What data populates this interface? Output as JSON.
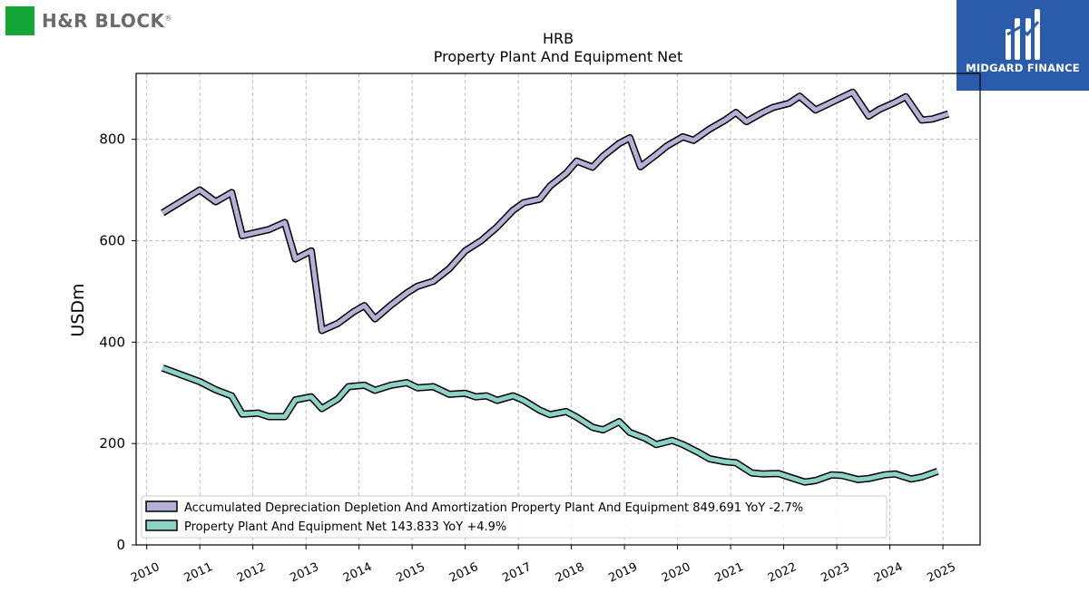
{
  "brand": {
    "left_logo": "H&R BLOCK",
    "left_logo_mark": "®",
    "right_logo": "MIDGARD FINANCE",
    "left_color": "#14a637",
    "right_color": "#2b5bab"
  },
  "chart_data": {
    "type": "line",
    "title": "HRB",
    "subtitle": "Property Plant And Equipment Net",
    "xlabel": "",
    "ylabel": "USDm",
    "xlim": [
      2009.8,
      2025.7
    ],
    "ylim": [
      0,
      930
    ],
    "yticks": [
      0,
      200,
      400,
      600,
      800
    ],
    "xticks": [
      "2010",
      "2011",
      "2012",
      "2013",
      "2014",
      "2015",
      "2016",
      "2017",
      "2018",
      "2019",
      "2020",
      "2021",
      "2022",
      "2023",
      "2024",
      "2025"
    ],
    "grid": true,
    "legend_position": "lower-left",
    "series": [
      {
        "name": "Accumulated Depreciation Depletion And Amortization Property Plant And Equipment",
        "legend": "Accumulated Depreciation Depletion And Amortization Property Plant And Equipment  849.691 YoY -2.7%",
        "color": "#b4b0d6",
        "points": [
          [
            2010.3,
            655
          ],
          [
            2011.0,
            700
          ],
          [
            2011.3,
            677
          ],
          [
            2011.6,
            695
          ],
          [
            2011.8,
            610
          ],
          [
            2012.3,
            622
          ],
          [
            2012.6,
            636
          ],
          [
            2012.8,
            564
          ],
          [
            2013.1,
            580
          ],
          [
            2013.3,
            423
          ],
          [
            2013.6,
            437
          ],
          [
            2013.9,
            460
          ],
          [
            2014.1,
            472
          ],
          [
            2014.3,
            446
          ],
          [
            2014.6,
            473
          ],
          [
            2014.9,
            497
          ],
          [
            2015.1,
            510
          ],
          [
            2015.4,
            520
          ],
          [
            2015.7,
            545
          ],
          [
            2016.0,
            580
          ],
          [
            2016.3,
            600
          ],
          [
            2016.6,
            627
          ],
          [
            2016.9,
            660
          ],
          [
            2017.1,
            675
          ],
          [
            2017.4,
            682
          ],
          [
            2017.6,
            708
          ],
          [
            2017.9,
            733
          ],
          [
            2018.1,
            757
          ],
          [
            2018.4,
            745
          ],
          [
            2018.6,
            767
          ],
          [
            2018.9,
            792
          ],
          [
            2019.1,
            803
          ],
          [
            2019.3,
            746
          ],
          [
            2019.6,
            770
          ],
          [
            2019.8,
            787
          ],
          [
            2020.1,
            805
          ],
          [
            2020.3,
            798
          ],
          [
            2020.6,
            820
          ],
          [
            2020.9,
            838
          ],
          [
            2021.1,
            853
          ],
          [
            2021.3,
            835
          ],
          [
            2021.6,
            853
          ],
          [
            2021.8,
            863
          ],
          [
            2022.1,
            871
          ],
          [
            2022.3,
            885
          ],
          [
            2022.6,
            858
          ],
          [
            2022.8,
            868
          ],
          [
            2023.1,
            883
          ],
          [
            2023.3,
            893
          ],
          [
            2023.6,
            846
          ],
          [
            2023.8,
            859
          ],
          [
            2024.1,
            873
          ],
          [
            2024.3,
            884
          ],
          [
            2024.6,
            838
          ],
          [
            2024.8,
            840
          ],
          [
            2025.1,
            850
          ]
        ]
      },
      {
        "name": "Property Plant And Equipment Net",
        "legend": "Property Plant And Equipment Net  143.833 YoY +4.9%",
        "color": "#8dd3c5",
        "points": [
          [
            2010.3,
            349
          ],
          [
            2011.0,
            322
          ],
          [
            2011.3,
            306
          ],
          [
            2011.6,
            294
          ],
          [
            2011.8,
            258
          ],
          [
            2012.1,
            260
          ],
          [
            2012.3,
            253
          ],
          [
            2012.6,
            253
          ],
          [
            2012.8,
            286
          ],
          [
            2013.1,
            292
          ],
          [
            2013.3,
            269
          ],
          [
            2013.6,
            288
          ],
          [
            2013.8,
            312
          ],
          [
            2014.1,
            315
          ],
          [
            2014.3,
            305
          ],
          [
            2014.6,
            315
          ],
          [
            2014.9,
            320
          ],
          [
            2015.1,
            310
          ],
          [
            2015.4,
            312
          ],
          [
            2015.7,
            297
          ],
          [
            2016.0,
            299
          ],
          [
            2016.2,
            292
          ],
          [
            2016.4,
            294
          ],
          [
            2016.6,
            285
          ],
          [
            2016.9,
            294
          ],
          [
            2017.1,
            285
          ],
          [
            2017.4,
            266
          ],
          [
            2017.6,
            257
          ],
          [
            2017.9,
            263
          ],
          [
            2018.1,
            252
          ],
          [
            2018.4,
            232
          ],
          [
            2018.6,
            227
          ],
          [
            2018.9,
            243
          ],
          [
            2019.1,
            222
          ],
          [
            2019.4,
            210
          ],
          [
            2019.6,
            198
          ],
          [
            2019.9,
            206
          ],
          [
            2020.1,
            198
          ],
          [
            2020.4,
            182
          ],
          [
            2020.6,
            170
          ],
          [
            2020.9,
            164
          ],
          [
            2021.1,
            162
          ],
          [
            2021.4,
            142
          ],
          [
            2021.6,
            140
          ],
          [
            2021.9,
            141
          ],
          [
            2022.1,
            134
          ],
          [
            2022.4,
            124
          ],
          [
            2022.6,
            127
          ],
          [
            2022.9,
            138
          ],
          [
            2023.1,
            137
          ],
          [
            2023.4,
            129
          ],
          [
            2023.6,
            131
          ],
          [
            2023.9,
            138
          ],
          [
            2024.1,
            140
          ],
          [
            2024.4,
            130
          ],
          [
            2024.6,
            134
          ],
          [
            2024.9,
            145
          ]
        ]
      }
    ]
  }
}
